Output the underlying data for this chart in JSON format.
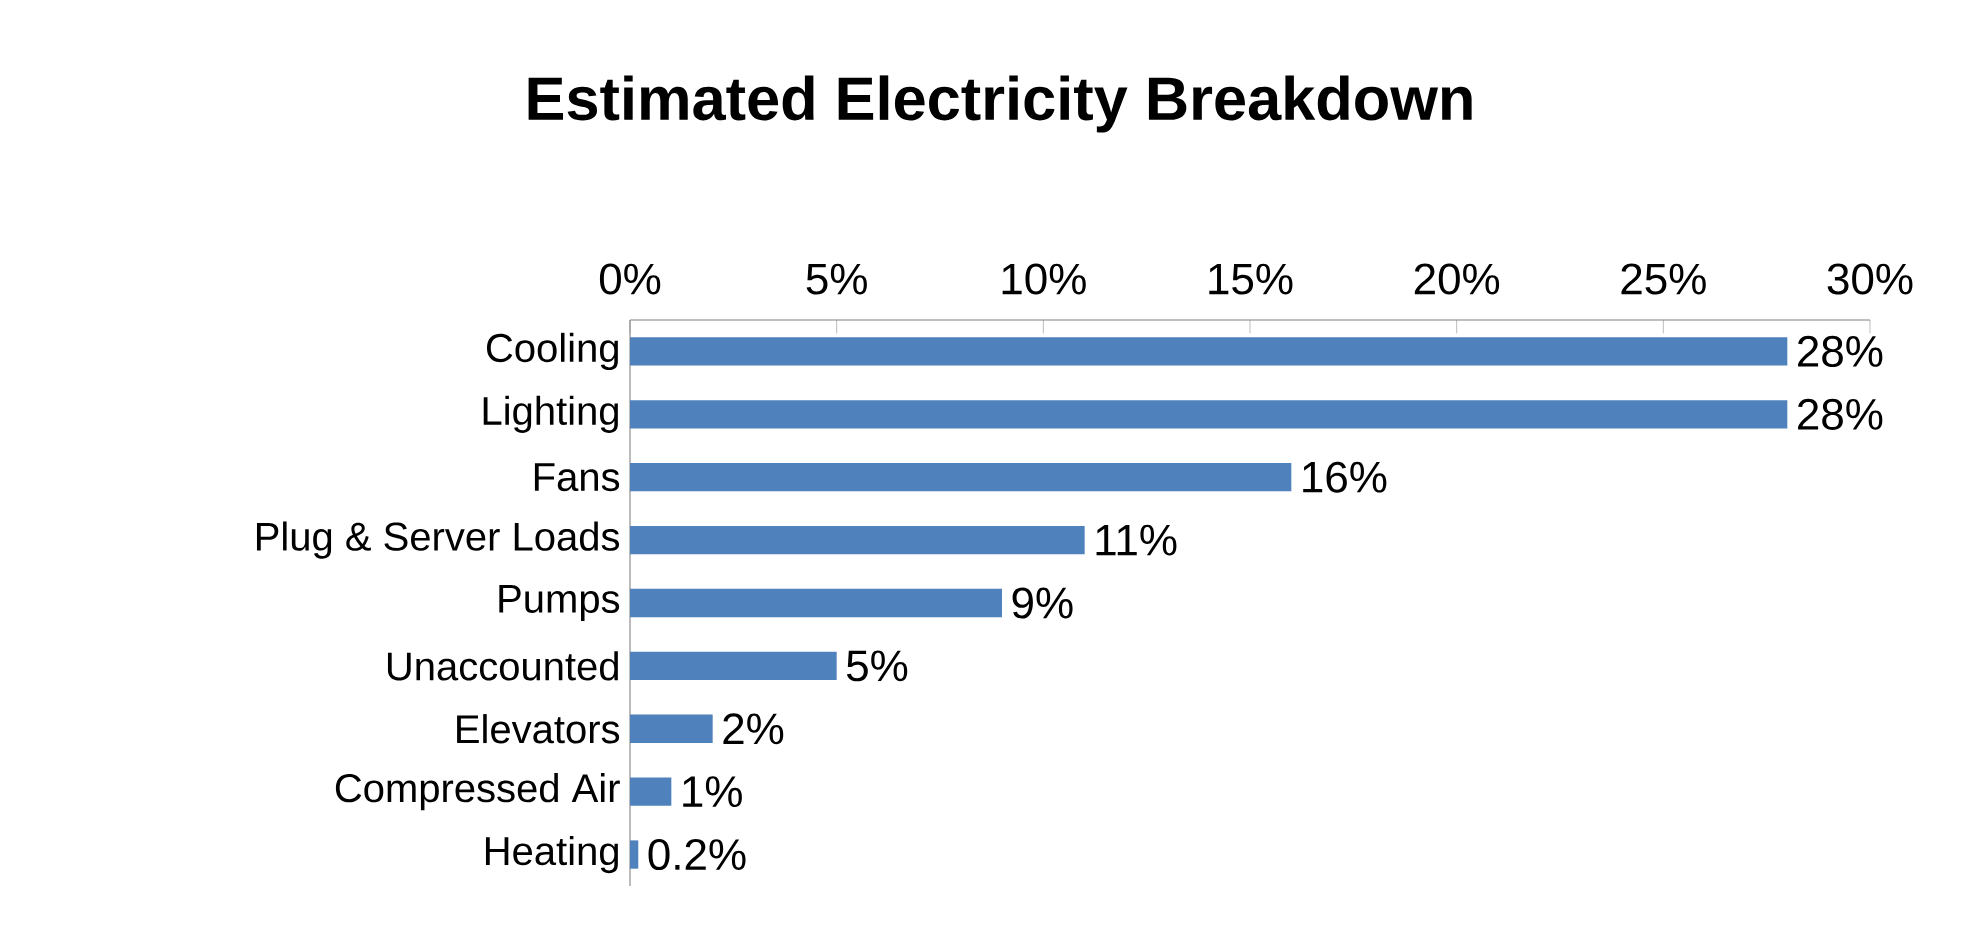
{
  "chart_data": {
    "type": "bar",
    "orientation": "horizontal",
    "title": "Estimated Electricity Breakdown",
    "categories": [
      "Cooling",
      "Lighting",
      "Fans",
      "Plug & Server Loads",
      "Pumps",
      "Unaccounted",
      "Elevators",
      "Compressed Air",
      "Heating"
    ],
    "values": [
      28,
      28,
      16,
      11,
      9,
      5,
      2,
      1,
      0.2
    ],
    "value_labels": [
      "28%",
      "28%",
      "16%",
      "11%",
      "9%",
      "5%",
      "2%",
      "1%",
      "0.2%"
    ],
    "color": "#4f81bd",
    "xlim": [
      0,
      30
    ],
    "xticks": [
      {
        "value": 0,
        "label": "0%"
      },
      {
        "value": 5,
        "label": "5%"
      },
      {
        "value": 10,
        "label": "10%"
      },
      {
        "value": 15,
        "label": "15%"
      },
      {
        "value": 20,
        "label": "20%"
      },
      {
        "value": 25,
        "label": "25%"
      },
      {
        "value": 30,
        "label": "30%"
      }
    ]
  }
}
